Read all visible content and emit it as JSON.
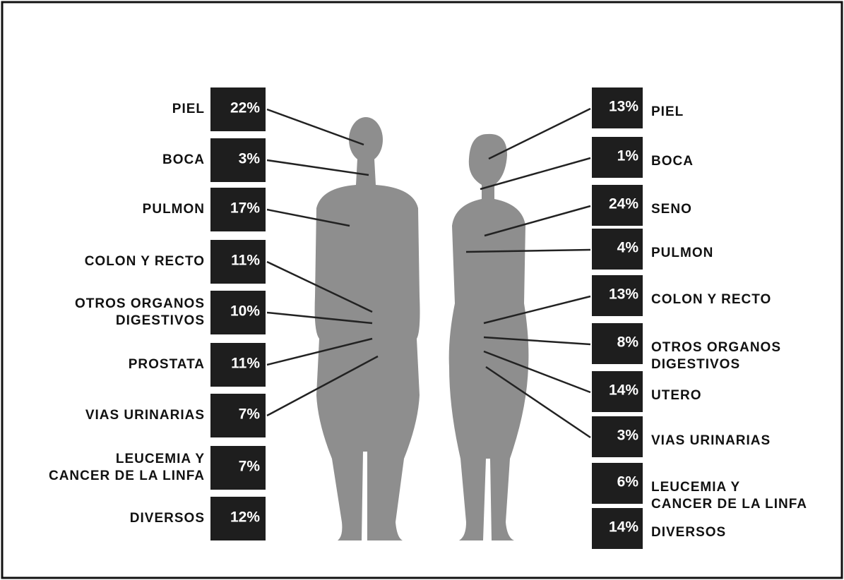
{
  "male": [
    {
      "label": [
        "PIEL"
      ],
      "value": "22%"
    },
    {
      "label": [
        "BOCA"
      ],
      "value": "3%"
    },
    {
      "label": [
        "PULMON"
      ],
      "value": "17%"
    },
    {
      "label": [
        "COLON Y RECTO"
      ],
      "value": "11%"
    },
    {
      "label": [
        "OTROS ORGANOS",
        "DIGESTIVOS"
      ],
      "value": "10%"
    },
    {
      "label": [
        "PROSTATA"
      ],
      "value": "11%"
    },
    {
      "label": [
        "VIAS URINARIAS"
      ],
      "value": "7%"
    },
    {
      "label": [
        "LEUCEMIA Y",
        "CANCER DE LA LINFA"
      ],
      "value": "7%"
    },
    {
      "label": [
        "DIVERSOS"
      ],
      "value": "12%"
    }
  ],
  "female": [
    {
      "label": [
        "PIEL"
      ],
      "value": "13%"
    },
    {
      "label": [
        "BOCA"
      ],
      "value": "1%"
    },
    {
      "label": [
        "SENO"
      ],
      "value": "24%"
    },
    {
      "label": [
        "PULMON"
      ],
      "value": "4%"
    },
    {
      "label": [
        "COLON Y RECTO"
      ],
      "value": "13%"
    },
    {
      "label": [
        "OTROS ORGANOS",
        "DIGESTIVOS"
      ],
      "value": "8%"
    },
    {
      "label": [
        "UTERO"
      ],
      "value": "14%"
    },
    {
      "label": [
        "VIAS URINARIAS"
      ],
      "value": "3%"
    },
    {
      "label": [
        "LEUCEMIA Y",
        "CANCER DE LA LINFA"
      ],
      "value": "6%"
    },
    {
      "label": [
        "DIVERSOS"
      ],
      "value": "14%"
    }
  ]
}
